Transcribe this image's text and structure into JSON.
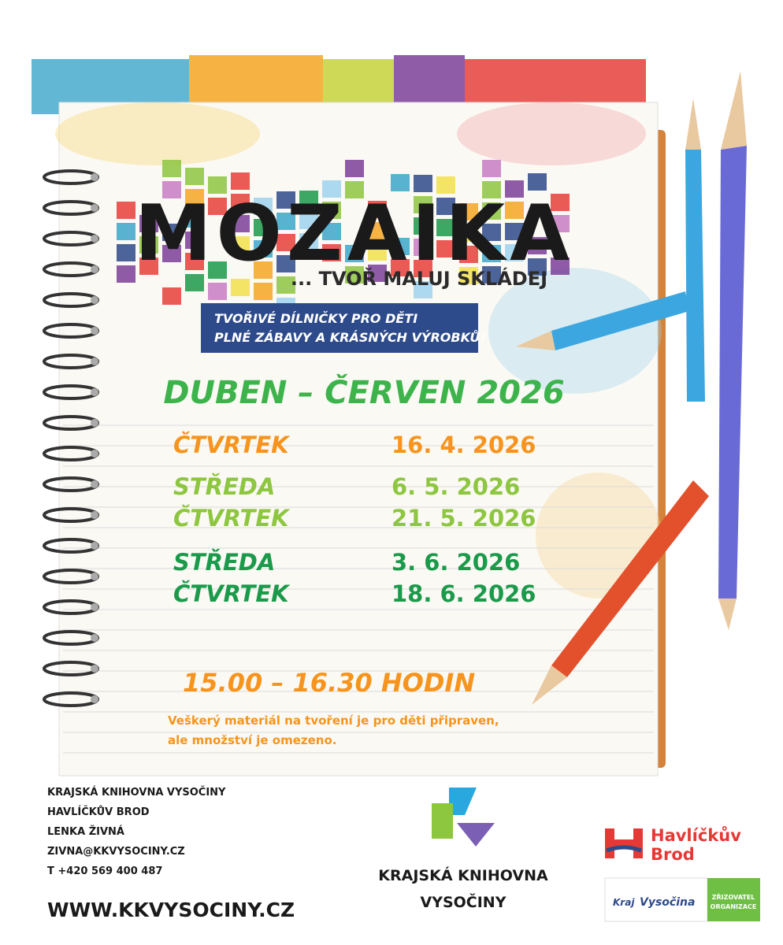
{
  "poster": {
    "title": "MOZAIKA",
    "tagline": "... TVOŘ MALUJ SKLÁDEJ",
    "banner": [
      "TVOŘIVÉ DÍLNIČKY PRO DĚTI",
      "PLNÉ ZÁBAVY A KRÁSNÝCH VÝROBKŮ!"
    ],
    "period": "DUBEN – ČERVEN 2026",
    "schedule": [
      {
        "day": "ČTVRTEK",
        "date": "16. 4. 2026",
        "color": "#f7941d"
      },
      {
        "day": "STŘEDA",
        "date": "6. 5. 2026",
        "color": "#8dc63f"
      },
      {
        "day": "ČTVRTEK",
        "date": "21. 5. 2026",
        "color": "#8dc63f"
      },
      {
        "day": "STŘEDA",
        "date": "3. 6. 2026",
        "color": "#1a9a4a"
      },
      {
        "day": "ČTVRTEK",
        "date": "18. 6. 2026",
        "color": "#1a9a4a"
      }
    ],
    "time": "15.00 – 16.30 HODIN",
    "note": [
      "Veškerý materiál na tvoření je pro děti připraven,",
      "ale množství je omezeno."
    ]
  },
  "footer": {
    "contact": [
      "KRAJSKÁ KNIHOVNA VYSOČINY",
      "HAVLÍČKŮV BROD",
      "LENKA ŽIVNÁ",
      "ZIVNA@KKVYSOCINY.CZ",
      "T +420 569 400 487"
    ],
    "website": "WWW.KKVYSOCINY.CZ",
    "library_logo": [
      "KRAJSKÁ KNIHOVNA",
      "VYSOČINY"
    ],
    "city_logo": [
      "Havlíčkův",
      "Brod"
    ],
    "region_logo": {
      "kraj": "Kraj",
      "name": "Vysočina",
      "role": [
        "ZŘIZOVATEL",
        "ORGANIZACE"
      ]
    }
  }
}
